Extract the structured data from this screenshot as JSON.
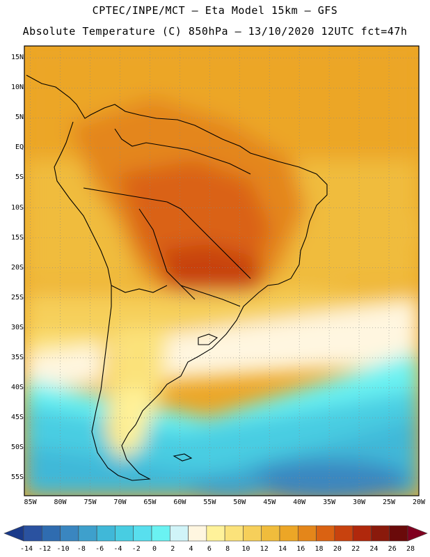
{
  "header": {
    "line1": "CPTEC/INPE/MCT –  Eta Model 15km – GFS",
    "line2": "Absolute Temperature (C) 850hPa – 13/10/2020 12UTC fct=47h"
  },
  "map": {
    "lat_labels": [
      "15N",
      "10N",
      "5N",
      "EQ",
      "5S",
      "10S",
      "15S",
      "20S",
      "25S",
      "30S",
      "35S",
      "40S",
      "45S",
      "50S",
      "55S"
    ],
    "lat_values": [
      15,
      10,
      5,
      0,
      -5,
      -10,
      -15,
      -20,
      -25,
      -30,
      -35,
      -40,
      -45,
      -50,
      -55
    ],
    "lon_labels": [
      "85W",
      "80W",
      "75W",
      "70W",
      "65W",
      "60W",
      "55W",
      "50W",
      "45W",
      "40W",
      "35W",
      "30W",
      "25W",
      "20W"
    ],
    "lon_values": [
      -85,
      -80,
      -75,
      -70,
      -65,
      -60,
      -55,
      -50,
      -45,
      -40,
      -35,
      -30,
      -25,
      -20
    ],
    "extent": {
      "lon_min": -86,
      "lon_max": -20,
      "lat_min": -58,
      "lat_max": 17
    }
  },
  "colorbar": {
    "labels": [
      "-14",
      "-12",
      "-10",
      "-8",
      "-6",
      "-4",
      "-2",
      "0",
      "2",
      "4",
      "6",
      "8",
      "10",
      "12",
      "14",
      "16",
      "18",
      "20",
      "22",
      "24",
      "26",
      "28"
    ],
    "colors": [
      "#1a3a8a",
      "#2a52a0",
      "#2f6cb0",
      "#3a86c0",
      "#3ea0cc",
      "#40b8d8",
      "#48cde2",
      "#58dfee",
      "#6af2f2",
      "#d0f4f8",
      "#fff6e0",
      "#fff29a",
      "#fbe27a",
      "#f6cf5a",
      "#f0bc3c",
      "#eca626",
      "#e4861a",
      "#da6212",
      "#c8420e",
      "#b0280c",
      "#8a1a0c",
      "#6a0a0a",
      "#800020"
    ]
  }
}
